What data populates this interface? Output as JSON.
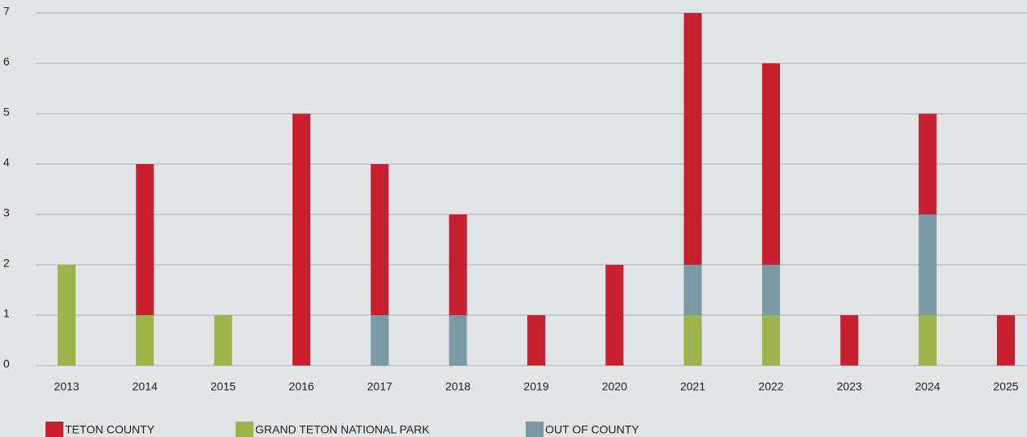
{
  "chart_data": {
    "type": "stacked_bar",
    "categories": [
      "2013",
      "2014",
      "2015",
      "2016",
      "2017",
      "2018",
      "2019",
      "2020",
      "2021",
      "2022",
      "2023",
      "2024",
      "2025"
    ],
    "series": [
      {
        "name": "GRAND TETON NATIONAL PARK",
        "color": "#9bb54a",
        "values": [
          2,
          1,
          1,
          0,
          0,
          0,
          0,
          0,
          1,
          1,
          0,
          1,
          0
        ]
      },
      {
        "name": "OUT OF COUNTY",
        "color": "#7a98a6",
        "values": [
          0,
          0,
          0,
          0,
          1,
          1,
          0,
          0,
          1,
          1,
          0,
          2,
          0
        ]
      },
      {
        "name": "TETON COUNTY",
        "color": "#c8202f",
        "values": [
          0,
          3,
          0,
          5,
          3,
          2,
          1,
          2,
          5,
          4,
          1,
          2,
          1
        ]
      }
    ],
    "legend_order": [
      2,
      0,
      1
    ],
    "ylim": [
      0,
      7
    ],
    "yticks": [
      0,
      1,
      2,
      3,
      4,
      5,
      6,
      7
    ],
    "grid": true
  }
}
